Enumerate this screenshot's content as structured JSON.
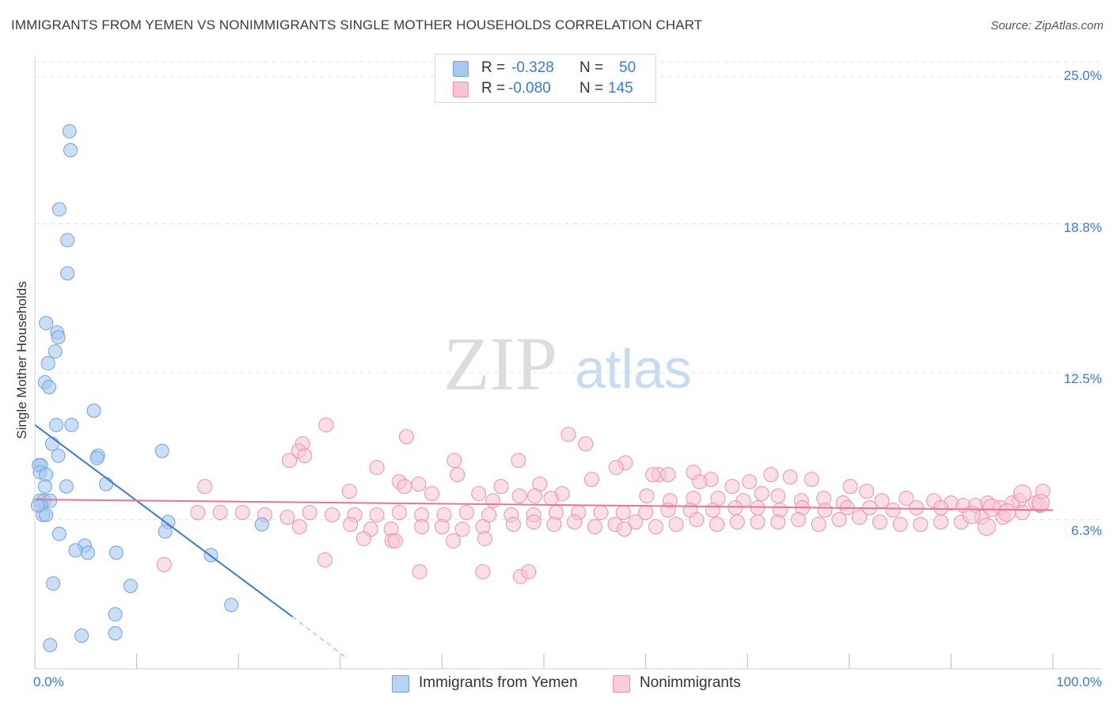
{
  "title": "IMMIGRANTS FROM YEMEN VS NONIMMIGRANTS SINGLE MOTHER HOUSEHOLDS CORRELATION CHART",
  "source": "Source: ZipAtlas.com",
  "watermark": {
    "zip": "ZIP",
    "atlas": "atlas"
  },
  "legend": {
    "rows": [
      {
        "r_label": "R =",
        "r_value": "-0.328",
        "n_label": "N =",
        "n_value": "50",
        "color": "#a9c8f0",
        "border": "#6fa3e2"
      },
      {
        "r_label": "R =",
        "r_value": "-0.080",
        "n_label": "N =",
        "n_value": "145",
        "color": "#f8c4d4",
        "border": "#ef92b0"
      }
    ]
  },
  "bottom_legend": [
    {
      "label": "Immigrants from Yemen",
      "color": "#b8d3f4",
      "border": "#6fa3e2"
    },
    {
      "label": "Nonimmigrants",
      "color": "#f9ccda",
      "border": "#ef92b0"
    }
  ],
  "chart_data": {
    "type": "scatter",
    "title": "IMMIGRANTS FROM YEMEN VS NONIMMIGRANTS SINGLE MOTHER HOUSEHOLDS CORRELATION CHART",
    "xlabel": "",
    "ylabel": "Single Mother Households",
    "xlim": [
      0,
      100
    ],
    "ylim": [
      0,
      25
    ],
    "x_tick_labels": [
      "0.0%",
      "100.0%"
    ],
    "y_ticks": [
      {
        "value": 6.3,
        "label": "6.3%"
      },
      {
        "value": 12.5,
        "label": "12.5%"
      },
      {
        "value": 18.8,
        "label": "18.8%"
      },
      {
        "value": 25.0,
        "label": "25.0%"
      }
    ],
    "grid": true,
    "series": [
      {
        "name": "Immigrants from Yemen",
        "color": "#a9c8f0",
        "stroke": "#6fa3e2",
        "points": [
          [
            3.4,
            22.7
          ],
          [
            3.5,
            21.9
          ],
          [
            2.4,
            19.4
          ],
          [
            3.2,
            18.1
          ],
          [
            3.2,
            16.7
          ],
          [
            1.1,
            14.6
          ],
          [
            2.2,
            14.2
          ],
          [
            2.3,
            14.0
          ],
          [
            2.0,
            13.4
          ],
          [
            1.3,
            12.9
          ],
          [
            1.0,
            12.1
          ],
          [
            1.4,
            11.9
          ],
          [
            5.8,
            10.9
          ],
          [
            2.1,
            10.3
          ],
          [
            3.6,
            10.3
          ],
          [
            1.7,
            9.5
          ],
          [
            12.5,
            9.2
          ],
          [
            6.2,
            9.0
          ],
          [
            6.1,
            8.9
          ],
          [
            2.3,
            9.0
          ],
          [
            0.4,
            8.6
          ],
          [
            0.6,
            8.6
          ],
          [
            0.5,
            8.3
          ],
          [
            1.1,
            8.2
          ],
          [
            7.0,
            7.8
          ],
          [
            1.0,
            7.7
          ],
          [
            3.1,
            7.7
          ],
          [
            0.5,
            7.1
          ],
          [
            0.9,
            7.1
          ],
          [
            1.5,
            7.1
          ],
          [
            0.6,
            6.9
          ],
          [
            0.8,
            6.5
          ],
          [
            1.1,
            6.5
          ],
          [
            13.1,
            6.2
          ],
          [
            22.3,
            6.1
          ],
          [
            12.8,
            5.8
          ],
          [
            2.4,
            5.7
          ],
          [
            4.9,
            5.2
          ],
          [
            4.0,
            5.0
          ],
          [
            5.2,
            4.9
          ],
          [
            8.0,
            4.9
          ],
          [
            17.3,
            4.8
          ],
          [
            1.8,
            3.6
          ],
          [
            9.4,
            3.5
          ],
          [
            19.3,
            2.7
          ],
          [
            7.9,
            2.3
          ],
          [
            4.6,
            1.4
          ],
          [
            7.9,
            1.5
          ],
          [
            1.5,
            1.0
          ],
          [
            0.3,
            6.9
          ]
        ]
      },
      {
        "name": "Nonimmigrants",
        "color": "#f8c4d4",
        "stroke": "#ef92b0",
        "points": [
          [
            28.6,
            10.3
          ],
          [
            36.5,
            9.8
          ],
          [
            52.4,
            9.9
          ],
          [
            26.3,
            9.5
          ],
          [
            54.1,
            9.5
          ],
          [
            25.9,
            9.2
          ],
          [
            26.5,
            9.0
          ],
          [
            25.0,
            8.8
          ],
          [
            41.2,
            8.8
          ],
          [
            47.5,
            8.8
          ],
          [
            58.0,
            8.7
          ],
          [
            33.6,
            8.5
          ],
          [
            54.7,
            8.0
          ],
          [
            57.1,
            8.5
          ],
          [
            61.3,
            8.2
          ],
          [
            41.5,
            8.2
          ],
          [
            62.2,
            8.2
          ],
          [
            60.7,
            8.2
          ],
          [
            64.7,
            8.3
          ],
          [
            66.4,
            8.0
          ],
          [
            72.3,
            8.2
          ],
          [
            70.2,
            7.9
          ],
          [
            68.5,
            7.7
          ],
          [
            65.3,
            7.9
          ],
          [
            74.2,
            8.1
          ],
          [
            76.3,
            8.0
          ],
          [
            80.1,
            7.7
          ],
          [
            81.7,
            7.5
          ],
          [
            16.7,
            7.7
          ],
          [
            35.8,
            7.9
          ],
          [
            49.6,
            7.8
          ],
          [
            45.8,
            7.7
          ],
          [
            36.3,
            7.7
          ],
          [
            37.7,
            7.8
          ],
          [
            43.6,
            7.4
          ],
          [
            47.6,
            7.3
          ],
          [
            51.8,
            7.4
          ],
          [
            49.1,
            7.3
          ],
          [
            30.9,
            7.5
          ],
          [
            39.0,
            7.4
          ],
          [
            45.0,
            7.1
          ],
          [
            50.7,
            7.2
          ],
          [
            60.1,
            7.3
          ],
          [
            62.4,
            7.1
          ],
          [
            64.7,
            7.2
          ],
          [
            67.1,
            7.2
          ],
          [
            69.6,
            7.1
          ],
          [
            71.4,
            7.4
          ],
          [
            73.0,
            7.3
          ],
          [
            75.3,
            7.1
          ],
          [
            77.5,
            7.2
          ],
          [
            79.4,
            7.0
          ],
          [
            83.2,
            7.1
          ],
          [
            85.6,
            7.2
          ],
          [
            88.3,
            7.1
          ],
          [
            90.0,
            7.0
          ],
          [
            92.4,
            6.9
          ],
          [
            94.8,
            6.8
          ],
          [
            96.7,
            7.1
          ],
          [
            98.3,
            7.0
          ],
          [
            99.0,
            7.5
          ],
          [
            98.7,
            6.9
          ],
          [
            96.0,
            7.0
          ],
          [
            93.6,
            7.0
          ],
          [
            91.2,
            6.9
          ],
          [
            89.0,
            6.8
          ],
          [
            86.6,
            6.8
          ],
          [
            84.3,
            6.7
          ],
          [
            82.0,
            6.8
          ],
          [
            79.8,
            6.8
          ],
          [
            77.6,
            6.7
          ],
          [
            75.4,
            6.8
          ],
          [
            73.2,
            6.7
          ],
          [
            71.0,
            6.8
          ],
          [
            68.8,
            6.8
          ],
          [
            66.6,
            6.7
          ],
          [
            64.4,
            6.7
          ],
          [
            62.2,
            6.7
          ],
          [
            60.0,
            6.6
          ],
          [
            57.8,
            6.6
          ],
          [
            55.6,
            6.6
          ],
          [
            53.4,
            6.6
          ],
          [
            51.2,
            6.6
          ],
          [
            49.0,
            6.5
          ],
          [
            46.8,
            6.5
          ],
          [
            44.6,
            6.5
          ],
          [
            42.4,
            6.6
          ],
          [
            40.2,
            6.5
          ],
          [
            38.0,
            6.5
          ],
          [
            35.8,
            6.6
          ],
          [
            33.6,
            6.5
          ],
          [
            31.4,
            6.5
          ],
          [
            29.2,
            6.5
          ],
          [
            27.0,
            6.6
          ],
          [
            24.8,
            6.4
          ],
          [
            22.6,
            6.5
          ],
          [
            20.4,
            6.6
          ],
          [
            18.2,
            6.6
          ],
          [
            16.0,
            6.6
          ],
          [
            97.0,
            6.6
          ],
          [
            95.1,
            6.4
          ],
          [
            93.0,
            6.4
          ],
          [
            91.0,
            6.2
          ],
          [
            89.0,
            6.2
          ],
          [
            87.0,
            6.1
          ],
          [
            85.0,
            6.1
          ],
          [
            83.0,
            6.2
          ],
          [
            81.0,
            6.4
          ],
          [
            79.0,
            6.3
          ],
          [
            77.0,
            6.1
          ],
          [
            75.0,
            6.3
          ],
          [
            73.0,
            6.2
          ],
          [
            71.0,
            6.2
          ],
          [
            69.0,
            6.2
          ],
          [
            67.0,
            6.1
          ],
          [
            65.0,
            6.3
          ],
          [
            63.0,
            6.1
          ],
          [
            61.0,
            6.0
          ],
          [
            59.0,
            6.2
          ],
          [
            57.0,
            6.1
          ],
          [
            55.0,
            6.0
          ],
          [
            53.0,
            6.2
          ],
          [
            51.0,
            6.1
          ],
          [
            49.0,
            6.2
          ],
          [
            47.0,
            6.1
          ],
          [
            44.0,
            6.0
          ],
          [
            42.0,
            5.9
          ],
          [
            40.0,
            6.0
          ],
          [
            38.0,
            6.0
          ],
          [
            35.0,
            5.9
          ],
          [
            33.0,
            5.9
          ],
          [
            31.0,
            6.1
          ],
          [
            26.0,
            6.0
          ],
          [
            57.9,
            5.9
          ],
          [
            35.1,
            5.4
          ],
          [
            32.3,
            5.5
          ],
          [
            35.4,
            5.4
          ],
          [
            41.1,
            5.4
          ],
          [
            44.2,
            5.5
          ],
          [
            28.5,
            4.6
          ],
          [
            12.7,
            4.4
          ],
          [
            37.8,
            4.1
          ],
          [
            44.0,
            4.1
          ],
          [
            47.7,
            3.9
          ],
          [
            48.5,
            4.1
          ]
        ],
        "big_points": [
          [
            98.8,
            7.0
          ],
          [
            97.0,
            7.4
          ],
          [
            94.0,
            6.8
          ],
          [
            92.0,
            6.5
          ],
          [
            93.5,
            6.0
          ],
          [
            95.5,
            6.6
          ]
        ]
      }
    ],
    "trend_lines": [
      {
        "series": "Immigrants from Yemen",
        "color": "#3a7bd5",
        "x_start": 0,
        "y_start": 10.3,
        "x_end": 25.3,
        "y_end": 2.2,
        "dashed_x_end": 30.5,
        "dashed_y_end": 0.5
      },
      {
        "series": "Nonimmigrants",
        "color": "#e8739a",
        "x_start": 0,
        "y_start": 7.15,
        "x_end": 100,
        "y_end": 6.7
      }
    ]
  }
}
